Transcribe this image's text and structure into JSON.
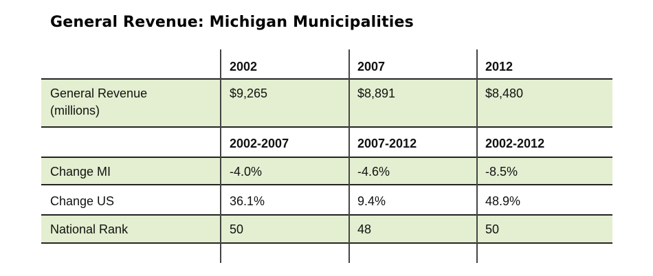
{
  "title": "General Revenue: Michigan Municipalities",
  "chart_data": {
    "type": "table",
    "title": "General Revenue: Michigan Municipalities",
    "header_years": [
      "2002",
      "2007",
      "2012"
    ],
    "revenue_row": {
      "label_line1": "General Revenue",
      "label_line2": "(millions)",
      "values": [
        "$9,265",
        "$8,891",
        "$8,480"
      ]
    },
    "header_periods": [
      "2002-2007",
      "2007-2012",
      "2002-2012"
    ],
    "rows": [
      {
        "label": "Change MI",
        "values": [
          "-4.0%",
          "-4.6%",
          "-8.5%"
        ]
      },
      {
        "label": "Change US",
        "values": [
          "36.1%",
          "9.4%",
          "48.9%"
        ]
      },
      {
        "label": "National Rank",
        "values": [
          "50",
          "48",
          "50"
        ]
      }
    ],
    "band_color": "#e3efd0",
    "line_color": "#222222"
  }
}
